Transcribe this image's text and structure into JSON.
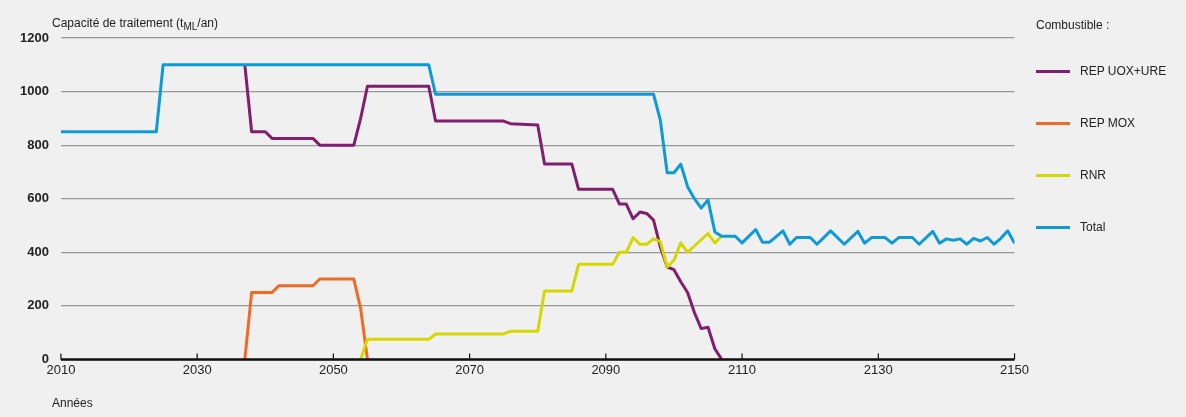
{
  "chart_data": {
    "type": "line",
    "ylabel": "Capacité de traitement (t$_{ML}$/an)",
    "xlabel": "Années",
    "legend_title": "Combustible :",
    "legend": "right",
    "grid": "y",
    "marker": "none",
    "line_style": "solid",
    "xlim": [
      2010,
      2150
    ],
    "xticks": [
      2010,
      2030,
      2050,
      2070,
      2090,
      2110,
      2130,
      2150
    ],
    "ylim": [
      0,
      1200
    ],
    "yticks": [
      0,
      200,
      400,
      600,
      800,
      1000,
      1200
    ],
    "series": [
      {
        "name": "REP UOX+URE",
        "color": "#7f1f6e",
        "x": [
          2037,
          2038,
          2040,
          2041,
          2047,
          2048,
          2053,
          2054,
          2055,
          2064,
          2065,
          2075,
          2076,
          2080,
          2081,
          2085,
          2086,
          2091,
          2092,
          2093,
          2094,
          2095,
          2096,
          2097,
          2098,
          2099,
          2100,
          2101,
          2102,
          2103,
          2104,
          2105,
          2106,
          2107
        ],
        "values": [
          1100,
          850,
          850,
          825,
          825,
          800,
          800,
          900,
          1020,
          1020,
          890,
          890,
          880,
          875,
          730,
          730,
          635,
          635,
          580,
          580,
          525,
          550,
          545,
          520,
          420,
          345,
          335,
          290,
          250,
          175,
          115,
          120,
          40,
          0
        ]
      },
      {
        "name": "REP MOX",
        "color": "#f06a24",
        "x": [
          2037,
          2038,
          2041,
          2042,
          2047,
          2048,
          2053,
          2054,
          2055
        ],
        "values": [
          0,
          250,
          250,
          275,
          275,
          300,
          300,
          190,
          0
        ]
      },
      {
        "name": "RNR",
        "color": "#d4d800",
        "x": [
          2054,
          2055,
          2064,
          2065,
          2075,
          2076,
          2080,
          2081,
          2085,
          2086,
          2091,
          2092,
          2093,
          2094,
          2095,
          2096,
          2097,
          2098,
          2099,
          2100,
          2101,
          2102,
          2105,
          2106,
          2107
        ],
        "values": [
          0,
          75,
          75,
          95,
          95,
          105,
          105,
          255,
          255,
          355,
          355,
          400,
          400,
          455,
          430,
          430,
          450,
          440,
          345,
          370,
          435,
          400,
          470,
          435,
          460
        ]
      },
      {
        "name": "Total",
        "color": "#0e9ad7",
        "x": [
          2010,
          2024,
          2025,
          2064,
          2065,
          2097,
          2098,
          2099,
          2100,
          2101,
          2102,
          2103,
          2104,
          2105,
          2106,
          2107,
          2109,
          2110,
          2112,
          2113,
          2114,
          2116,
          2117,
          2118,
          2120,
          2121,
          2123,
          2125,
          2127,
          2128,
          2129,
          2131,
          2132,
          2133,
          2135,
          2136,
          2138,
          2139,
          2140,
          2141,
          2142,
          2143,
          2144,
          2145,
          2146,
          2147,
          2148,
          2149,
          2150
        ],
        "values": [
          850,
          850,
          1100,
          1100,
          990,
          990,
          893,
          697,
          697,
          729,
          645,
          600,
          565,
          595,
          476,
          460,
          460,
          435,
          485,
          437,
          437,
          480,
          430,
          455,
          455,
          430,
          480,
          430,
          478,
          434,
          455,
          455,
          434,
          455,
          455,
          430,
          478,
          434,
          450,
          445,
          450,
          430,
          452,
          442,
          455,
          430,
          452,
          480,
          434
        ]
      }
    ]
  }
}
